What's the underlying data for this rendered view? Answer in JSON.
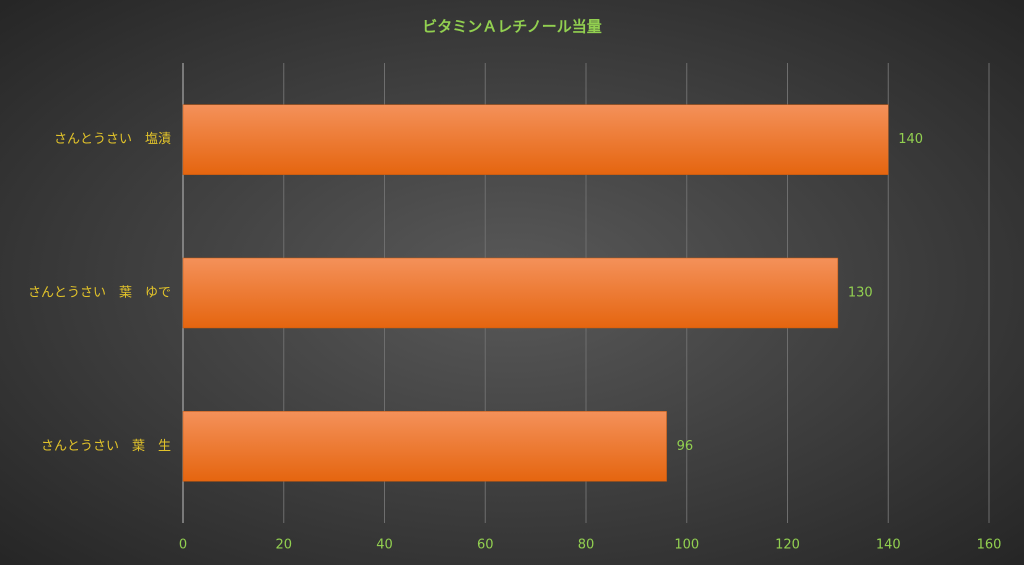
{
  "chart_data": {
    "type": "bar",
    "horizontal": true,
    "title": "ビタミンＡレチノール当量",
    "categories": [
      "さんとうさい　塩漬",
      "さんとうさい　葉　ゆで",
      "さんとうさい　葉　生"
    ],
    "values": [
      140,
      130,
      96
    ],
    "color": "#ec7a2c",
    "xlim": [
      0,
      160
    ],
    "xticks": [
      0,
      20,
      40,
      60,
      80,
      100,
      120,
      140,
      160
    ],
    "grid": true
  }
}
